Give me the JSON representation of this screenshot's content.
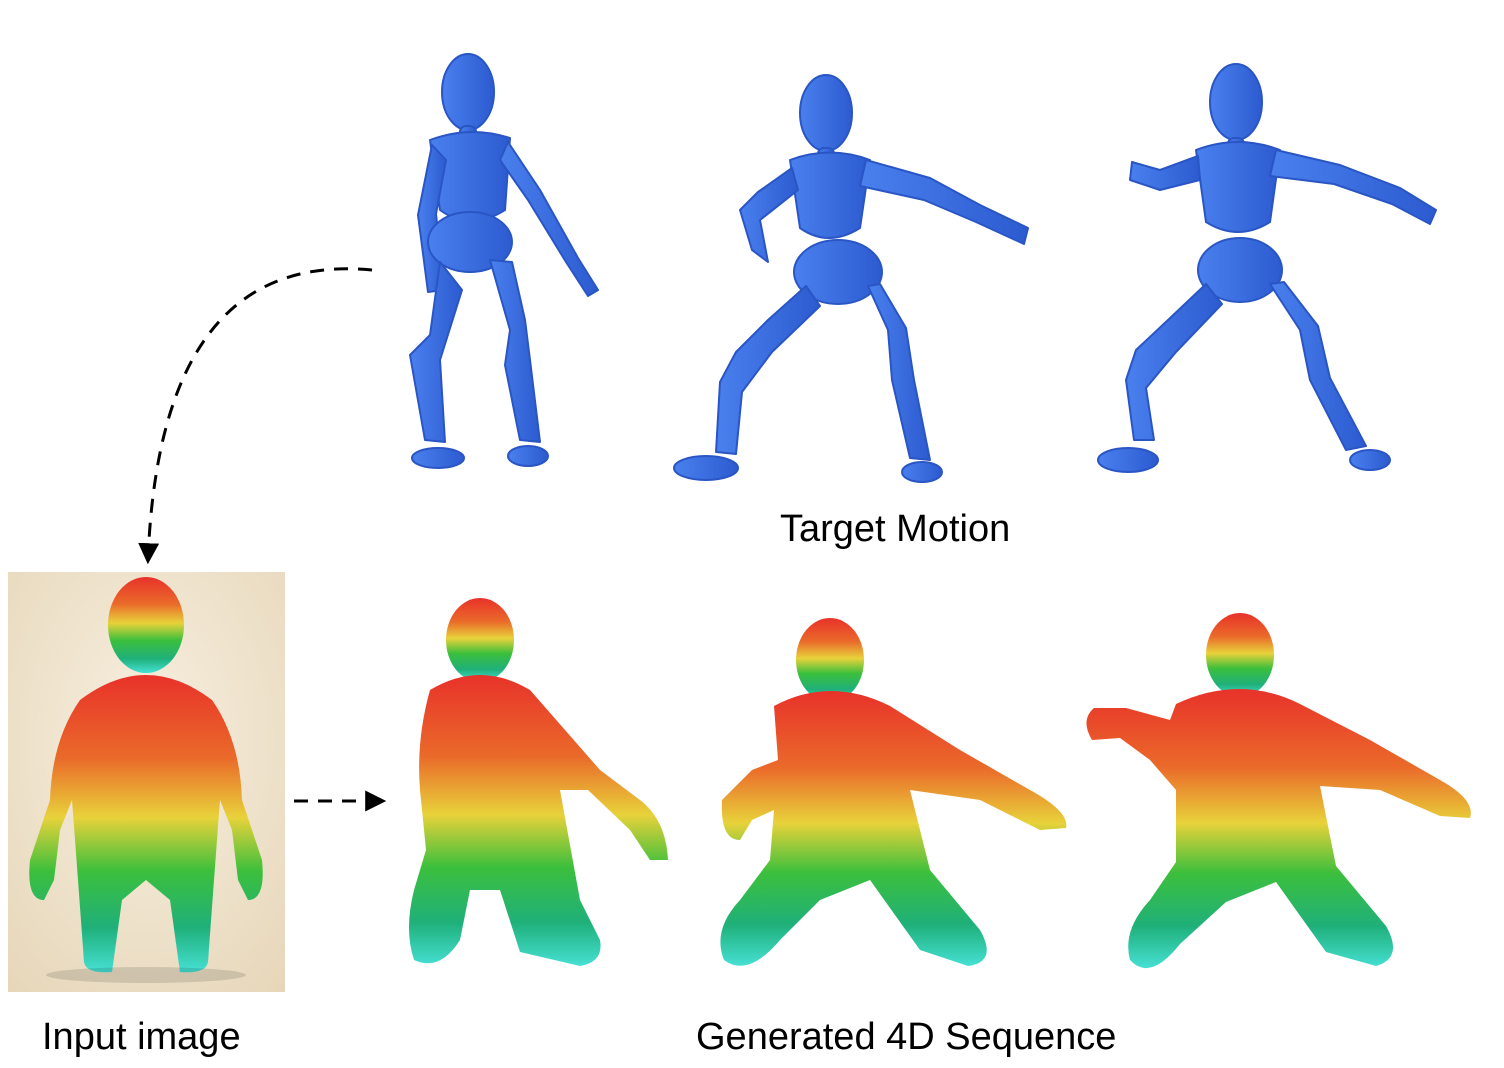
{
  "labels": {
    "target_motion": "Target Motion",
    "input_image": "Input image",
    "generated_sequence": "Generated 4D Sequence"
  },
  "colors": {
    "mannequin": "#3a6fe0",
    "mannequin_shade": "#2a55c4",
    "gradient_top": "#e83a2a",
    "gradient_mid": "#e8d23a",
    "gradient_low": "#2fb84a",
    "gradient_bottom": "#38d8c8",
    "photo_bg": "#f2e6cf",
    "arrow": "#000000"
  },
  "icons": {
    "mannequin": "blue-mannequin-icon",
    "figure": "gradient-figure-icon",
    "arrow": "dashed-arrow-icon"
  }
}
